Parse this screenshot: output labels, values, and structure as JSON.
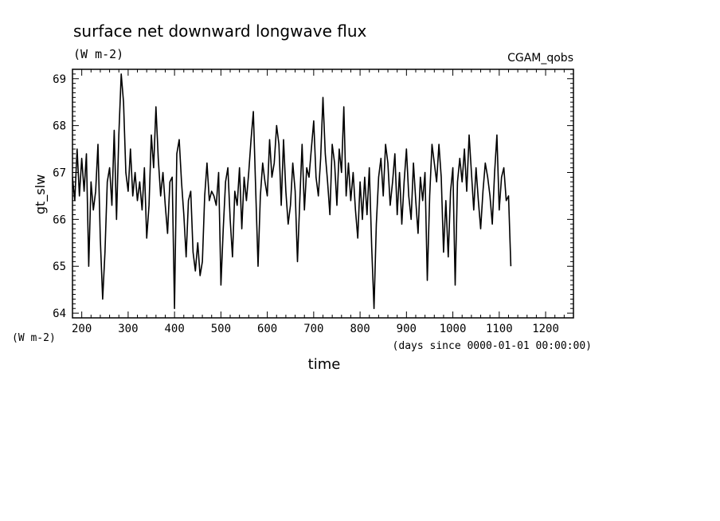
{
  "chart_data": {
    "type": "line",
    "title": "surface net downward longwave flux",
    "units": "(W m-2)",
    "dataset": "CGAM_qobs",
    "ylabel": "gt_slw",
    "y_units_label": "(W m-2)",
    "xlabel": "time",
    "x_units_label": "(days since 0000-01-01 00:00:00)",
    "xlim": [
      180,
      1260
    ],
    "ylim": [
      63.9,
      69.2
    ],
    "x_ticks": [
      200,
      300,
      400,
      500,
      600,
      700,
      800,
      900,
      1000,
      1100,
      1200
    ],
    "y_ticks": [
      64,
      65,
      66,
      67,
      68,
      69
    ],
    "grid": false,
    "legend": "none",
    "line_color": "#000000",
    "series": [
      {
        "x_start": 180,
        "x_step": 5,
        "values": [
          66.9,
          66.4,
          67.5,
          66.5,
          67.3,
          66.6,
          67.4,
          65.0,
          66.8,
          66.2,
          66.6,
          67.6,
          65.6,
          64.3,
          65.3,
          66.8,
          67.1,
          66.3,
          67.9,
          66.0,
          67.8,
          69.1,
          68.5,
          67.0,
          66.6,
          67.5,
          66.5,
          67.0,
          66.4,
          66.8,
          66.2,
          67.1,
          65.6,
          66.3,
          67.8,
          67.1,
          68.4,
          67.3,
          66.5,
          67.0,
          66.3,
          65.7,
          66.8,
          66.9,
          64.1,
          67.4,
          67.7,
          66.8,
          66.1,
          65.2,
          66.4,
          66.6,
          65.3,
          64.9,
          65.5,
          64.8,
          65.1,
          66.5,
          67.2,
          66.4,
          66.6,
          66.5,
          66.3,
          67.0,
          64.6,
          65.8,
          66.8,
          67.1,
          66.0,
          65.2,
          66.6,
          66.3,
          67.1,
          65.8,
          66.9,
          66.4,
          67.0,
          67.7,
          68.3,
          66.6,
          65.0,
          66.5,
          67.2,
          66.8,
          66.5,
          67.7,
          66.9,
          67.2,
          68.0,
          67.6,
          66.3,
          67.7,
          66.6,
          65.9,
          66.3,
          67.2,
          66.6,
          65.1,
          66.4,
          67.6,
          66.2,
          67.1,
          66.9,
          67.5,
          68.1,
          66.9,
          66.5,
          67.3,
          68.6,
          67.4,
          66.8,
          66.1,
          67.6,
          67.2,
          66.3,
          67.5,
          67.0,
          68.4,
          66.5,
          67.2,
          66.4,
          67.0,
          66.2,
          65.6,
          66.8,
          66.0,
          66.9,
          66.1,
          67.1,
          65.4,
          64.1,
          65.9,
          66.9,
          67.3,
          66.5,
          67.6,
          67.2,
          66.3,
          66.8,
          67.4,
          66.1,
          67.0,
          65.9,
          66.8,
          67.5,
          66.5,
          66.0,
          67.2,
          66.4,
          65.7,
          66.9,
          66.4,
          67.0,
          64.7,
          66.5,
          67.6,
          67.2,
          66.8,
          67.6,
          66.9,
          65.3,
          66.4,
          65.2,
          66.6,
          67.1,
          64.6,
          66.8,
          67.3,
          66.8,
          67.5,
          66.6,
          67.8,
          67.0,
          66.2,
          67.1,
          66.4,
          65.8,
          66.6,
          67.2,
          66.9,
          66.5,
          65.9,
          67.0,
          67.8,
          66.2,
          66.9,
          67.1,
          66.4,
          66.5,
          65.0
        ]
      }
    ]
  }
}
